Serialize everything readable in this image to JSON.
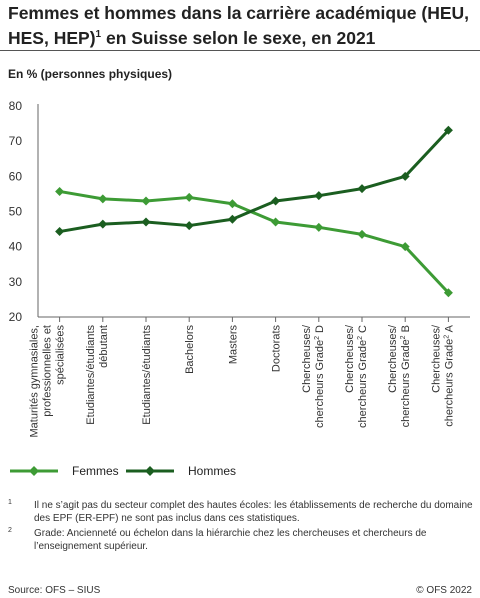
{
  "header": {
    "title": "Femmes et hommes dans la carrière académique (HEU, HES, HEP)",
    "title_note": "1",
    "title_suffix": " en Suisse selon le sexe, en 2021",
    "unit": "En % (personnes physiques)"
  },
  "chart_data": {
    "type": "line",
    "categories": [
      [
        "Maturités gymnasiales,",
        "professionnelles et",
        "spécialisées"
      ],
      [
        "Etudiantes/étudiants",
        "débutant"
      ],
      [
        "Etudiantes/étudiants"
      ],
      [
        "Bachelors"
      ],
      [
        "Masters"
      ],
      [
        "Doctorats"
      ],
      [
        "Chercheuses/",
        "chercheurs Grade² D"
      ],
      [
        "Chercheuses/",
        "chercheurs Grade² C"
      ],
      [
        "Chercheuses/",
        "chercheurs Grade² B"
      ],
      [
        "Chercheuses/",
        "chercheurs Grade² A"
      ]
    ],
    "yticks": [
      "20",
      "30",
      "40",
      "50",
      "60",
      "70",
      "80"
    ],
    "ylim": [
      20,
      80
    ],
    "grid": false,
    "legend_position": "bottom",
    "series": [
      {
        "name": "Femmes",
        "color": "#3d9b35",
        "values": [
          55.7,
          53.6,
          53.0,
          54.0,
          52.2,
          47.0,
          45.5,
          43.5,
          40.0,
          26.9
        ]
      },
      {
        "name": "Hommes",
        "color": "#1b5e20",
        "values": [
          44.3,
          46.4,
          47.0,
          46.0,
          47.8,
          53.0,
          54.5,
          56.5,
          60.0,
          73.1
        ]
      }
    ]
  },
  "footnotes": [
    {
      "num": "1",
      "text": "Il ne s’agit pas du secteur complet des hautes écoles: les établissements de recherche du domaine des EPF (ER-EPF) ne sont pas inclus dans ces statistiques."
    },
    {
      "num": "2",
      "text": "Grade: Ancienneté ou échelon dans la hiérarchie chez les chercheuses et chercheurs de l’enseignement supérieur."
    }
  ],
  "footer": {
    "source": "Source: OFS – SIUS",
    "copyright": "© OFS 2022"
  }
}
